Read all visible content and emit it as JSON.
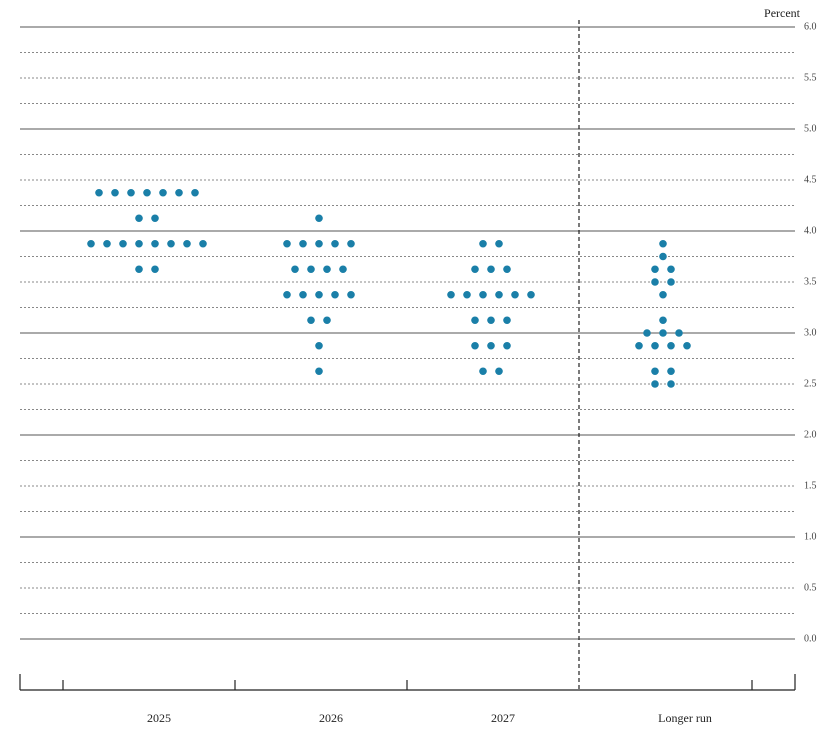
{
  "chart_data": {
    "type": "dot",
    "y_label": "Percent",
    "categories": [
      "2025",
      "2026",
      "2027",
      "Longer run"
    ],
    "dot_values": [
      [
        4.375,
        4.375,
        4.375,
        4.375,
        4.375,
        4.375,
        4.375,
        4.125,
        4.125,
        3.875,
        3.875,
        3.875,
        3.875,
        3.875,
        3.875,
        3.875,
        3.875,
        3.625,
        3.625
      ],
      [
        4.125,
        3.875,
        3.875,
        3.875,
        3.875,
        3.875,
        3.625,
        3.625,
        3.625,
        3.625,
        3.375,
        3.375,
        3.375,
        3.375,
        3.375,
        3.125,
        3.125,
        2.875,
        2.625
      ],
      [
        3.875,
        3.875,
        3.625,
        3.625,
        3.625,
        3.375,
        3.375,
        3.375,
        3.375,
        3.375,
        3.375,
        3.125,
        3.125,
        3.125,
        2.875,
        2.875,
        2.875,
        2.625,
        2.625
      ],
      [
        3.875,
        3.75,
        3.625,
        3.625,
        3.5,
        3.5,
        3.375,
        3.125,
        3,
        3,
        3,
        2.875,
        2.875,
        2.875,
        2.875,
        2.625,
        2.625,
        2.5,
        2.5
      ]
    ],
    "color": "#1a7fa8",
    "ylim": [
      -0.5,
      6
    ],
    "yticks": [
      {
        "value": 0,
        "label": "0.0"
      },
      {
        "value": 0.5,
        "label": "0.5"
      },
      {
        "value": 1,
        "label": "1.0"
      },
      {
        "value": 1.5,
        "label": "1.5"
      },
      {
        "value": 2,
        "label": "2.0"
      },
      {
        "value": 2.5,
        "label": "2.5"
      },
      {
        "value": 3,
        "label": "3.0"
      },
      {
        "value": 3.5,
        "label": "3.5"
      },
      {
        "value": 4,
        "label": "4.0"
      },
      {
        "value": 4.5,
        "label": "4.5"
      },
      {
        "value": 5,
        "label": "5.0"
      },
      {
        "value": 5.5,
        "label": "5.5"
      },
      {
        "value": 6,
        "label": "6.0"
      }
    ],
    "grid_lines": [
      0,
      0.25,
      0.5,
      0.75,
      1,
      1.25,
      1.5,
      1.75,
      2,
      2.25,
      2.5,
      2.75,
      3,
      3.25,
      3.5,
      3.75,
      4,
      4.25,
      4.5,
      4.75,
      5,
      5.25,
      5.5,
      5.75,
      6
    ]
  }
}
